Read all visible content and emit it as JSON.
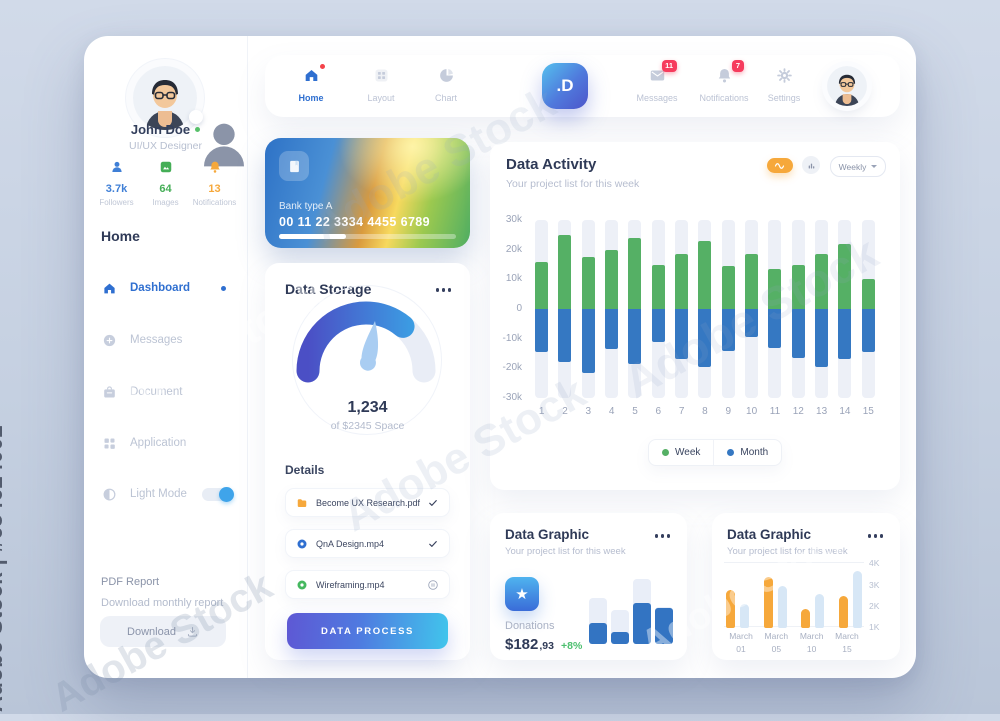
{
  "watermark": {
    "side_text": "Adobe Stock | #634624002",
    "diagonal_text": "Adobe Stock"
  },
  "sidebar": {
    "user": {
      "name": "John Doe",
      "role": "UI/UX Designer"
    },
    "stats": [
      {
        "icon": "user-icon",
        "value": "3.7k",
        "label": "Followers",
        "color": "#3f7fd6"
      },
      {
        "icon": "image-icon",
        "value": "64",
        "label": "Images",
        "color": "#45ae57"
      },
      {
        "icon": "bell-icon",
        "value": "13",
        "label": "Notifications",
        "color": "#f6a83b"
      }
    ],
    "section_label": "Home",
    "menu": [
      {
        "icon": "home-icon",
        "label": "Dashboard",
        "active": true,
        "dot": true
      },
      {
        "icon": "plus-circle-icon",
        "label": "Messages"
      },
      {
        "icon": "briefcase-icon",
        "label": "Document"
      },
      {
        "icon": "app-grid-icon",
        "label": "Application"
      },
      {
        "icon": "contrast-icon",
        "label": "Light Mode",
        "toggle": true
      }
    ],
    "pdf_report_label": "PDF Report",
    "download_monthly_label": "Download monthly report",
    "download_button_label": "Download"
  },
  "topnav": {
    "left_items": [
      {
        "icon": "home-icon",
        "label": "Home",
        "active": true,
        "alert_dot": true
      },
      {
        "icon": "layout-grid-icon",
        "label": "Layout"
      },
      {
        "icon": "pie-chart-icon",
        "label": "Chart"
      }
    ],
    "logo_text": ".D",
    "right_items": [
      {
        "icon": "envelope-icon",
        "label": "Messages",
        "badge": "11"
      },
      {
        "icon": "bell-icon",
        "label": "Notifications",
        "badge": "7"
      },
      {
        "icon": "gear-icon",
        "label": "Settings"
      }
    ]
  },
  "bank_card": {
    "type_label": "Bank type A",
    "card_number": "00 11 22 3334 4455 6789",
    "progress_pct": 38
  },
  "data_storage": {
    "title": "Data Storage",
    "gauge": {
      "value": "1,234",
      "caption": "of $2345 Space",
      "fill_pct": 72
    },
    "details_label": "Details",
    "files": [
      {
        "icon": "file-orange-icon",
        "name": "Become UX Research.pdf",
        "status": "check"
      },
      {
        "icon": "record-blue-icon",
        "name": "QnA Design.mp4",
        "status": "check"
      },
      {
        "icon": "record-green-icon",
        "name": "Wireframing.mp4",
        "status": "pause"
      }
    ],
    "button_label": "DATA PROCESS"
  },
  "data_activity": {
    "title": "Data Activity",
    "subtitle": "Your project list for this week",
    "dropdown_label": "Weekly",
    "legend": [
      {
        "label": "Week",
        "color": "#55b065"
      },
      {
        "label": "Month",
        "color": "#3578c2"
      }
    ]
  },
  "data_graphic_left": {
    "title": "Data Graphic",
    "subtitle": "Your project list for this week",
    "metric": {
      "label": "Donations",
      "value": "$182",
      "cents": ",93",
      "delta": "+8%"
    }
  },
  "data_graphic_right": {
    "title": "Data Graphic",
    "subtitle": "Your project list for this week"
  },
  "chart_data": [
    {
      "id": "data-activity",
      "type": "bar",
      "title": "Data Activity",
      "categories": [
        "1",
        "2",
        "3",
        "4",
        "5",
        "6",
        "7",
        "8",
        "9",
        "10",
        "11",
        "12",
        "13",
        "14",
        "15"
      ],
      "series": [
        {
          "name": "Week",
          "color": "#55b065",
          "values": [
            16,
            25,
            17.5,
            20,
            24,
            15,
            18.5,
            23,
            14.5,
            18.5,
            13.5,
            15,
            18.5,
            22,
            10
          ]
        },
        {
          "name": "Month",
          "color": "#3578c2",
          "values": [
            -14.5,
            -18,
            -21.5,
            -13.5,
            -18.5,
            -11,
            -17,
            -19.5,
            -14,
            -9.5,
            -13,
            -16.5,
            -19.5,
            -17,
            -14.5
          ]
        }
      ],
      "unit": "k",
      "ylim": [
        -30,
        30
      ],
      "yticks": [
        30,
        20,
        10,
        0,
        -10,
        -20,
        -30
      ],
      "ytick_labels": [
        "30k",
        "20k",
        "10k",
        "0",
        "-10k",
        "-20k",
        "-30k"
      ],
      "legend_position": "bottom",
      "grid": false,
      "track_color": "#edf0f7"
    },
    {
      "id": "donations-mini",
      "type": "bar",
      "color": "#3374c2",
      "track_color": "#e9eef8",
      "values_pct": [
        30,
        17,
        59,
        51
      ],
      "track_pct": [
        66,
        49,
        93,
        53
      ]
    },
    {
      "id": "march-graphic",
      "type": "bar",
      "categories": [
        "March 01",
        "March 05",
        "March 10",
        "March 15"
      ],
      "series": [
        {
          "name": "series-orange",
          "color": "#f6a83b",
          "values": [
            2.7,
            3.3,
            1.8,
            2.4
          ]
        },
        {
          "name": "series-blue",
          "color": "#d7e7f6",
          "values": [
            2.05,
            2.9,
            2.5,
            3.6
          ]
        }
      ],
      "unit": "K",
      "ylim": [
        0.9,
        4.2
      ],
      "yticks": [
        4,
        3,
        2,
        1
      ],
      "ytick_labels": [
        "4K",
        "3K",
        "2K",
        "1K"
      ],
      "gridline_values": [
        4,
        1
      ]
    }
  ]
}
